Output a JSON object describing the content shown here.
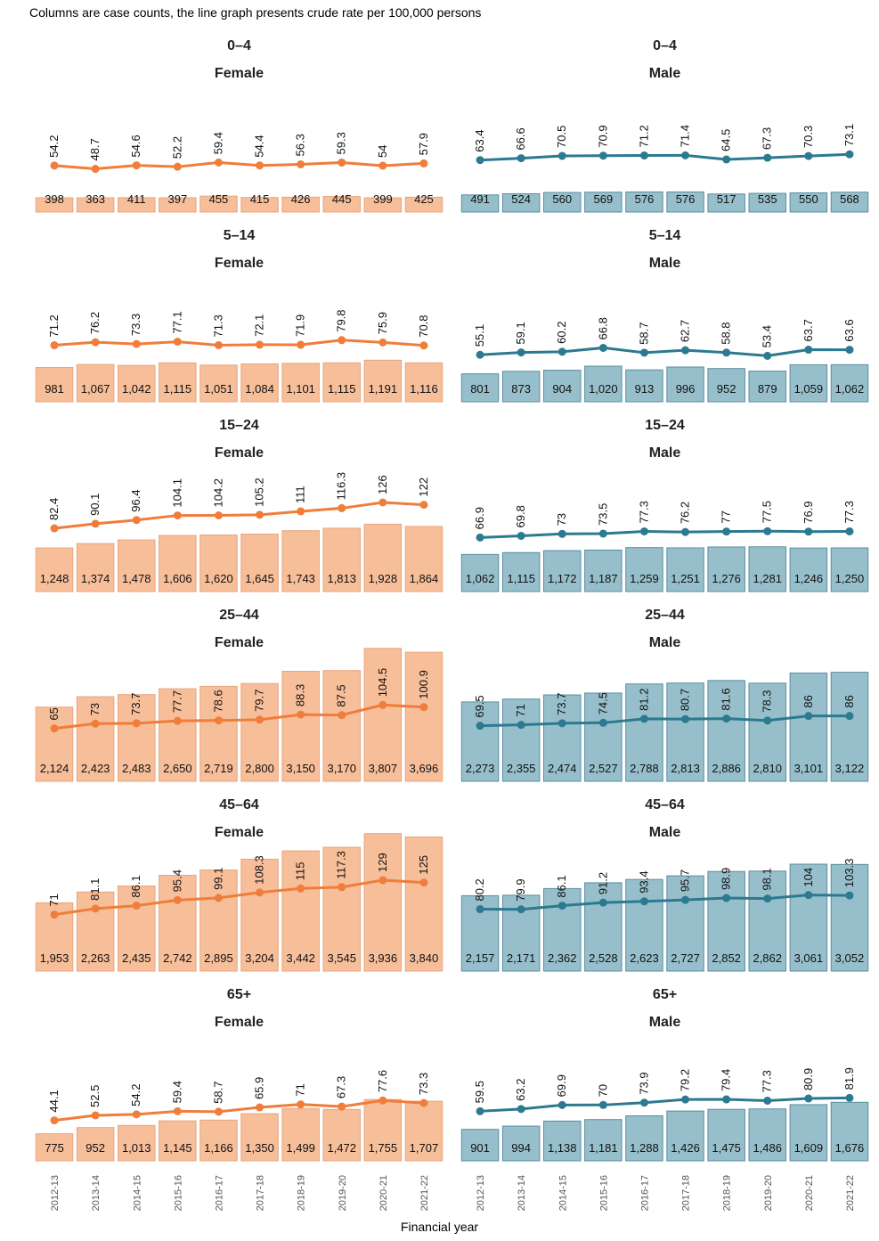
{
  "caption": "Columns are case counts, the line graph presents crude rate per 100,000 persons",
  "xaxis_title": "Financial year",
  "colors": {
    "female_bar": "#f7be9a",
    "female_bar_edge": "#e8a57e",
    "female_line": "#f07d3a",
    "male_bar": "#97bfcb",
    "male_bar_edge": "#5a8ea0",
    "male_line": "#2b7a90"
  },
  "chart_data": {
    "type": "bar+line",
    "categories": [
      "2012-13",
      "2013-14",
      "2014-15",
      "2015-16",
      "2016-17",
      "2017-18",
      "2018-19",
      "2019-20",
      "2020-21",
      "2021-22"
    ],
    "panels": [
      {
        "age": "0–4",
        "sex": "Female",
        "counts": [
          "398",
          "363",
          "411",
          "397",
          "455",
          "415",
          "426",
          "445",
          "399",
          "425"
        ],
        "rates": [
          "54.2",
          "48.7",
          "54.6",
          "52.2",
          "59.4",
          "54.4",
          "56.3",
          "59.3",
          "54",
          "57.9"
        ]
      },
      {
        "age": "0–4",
        "sex": "Male",
        "counts": [
          "491",
          "524",
          "560",
          "569",
          "576",
          "576",
          "517",
          "535",
          "550",
          "568"
        ],
        "rates": [
          "63.4",
          "66.6",
          "70.5",
          "70.9",
          "71.2",
          "71.4",
          "64.5",
          "67.3",
          "70.3",
          "73.1"
        ]
      },
      {
        "age": "5–14",
        "sex": "Female",
        "counts": [
          "981",
          "1,067",
          "1,042",
          "1,115",
          "1,051",
          "1,084",
          "1,101",
          "1,115",
          "1,191",
          "1,116"
        ],
        "rates": [
          "71.2",
          "76.2",
          "73.3",
          "77.1",
          "71.3",
          "72.1",
          "71.9",
          "79.8",
          "75.9",
          "70.8"
        ]
      },
      {
        "age": "5–14",
        "sex": "Male",
        "counts": [
          "801",
          "873",
          "904",
          "1,020",
          "913",
          "996",
          "952",
          "879",
          "1,059",
          "1,062"
        ],
        "rates": [
          "55.1",
          "59.1",
          "60.2",
          "66.8",
          "58.7",
          "62.7",
          "58.8",
          "53.4",
          "63.7",
          "63.6"
        ]
      },
      {
        "age": "15–24",
        "sex": "Female",
        "counts": [
          "1,248",
          "1,374",
          "1,478",
          "1,606",
          "1,620",
          "1,645",
          "1,743",
          "1,813",
          "1,928",
          "1,864"
        ],
        "rates": [
          "82.4",
          "90.1",
          "96.4",
          "104.1",
          "104.2",
          "105.2",
          "111",
          "116.3",
          "126",
          "122"
        ]
      },
      {
        "age": "15–24",
        "sex": "Male",
        "counts": [
          "1,062",
          "1,115",
          "1,172",
          "1,187",
          "1,259",
          "1,251",
          "1,276",
          "1,281",
          "1,246",
          "1,250"
        ],
        "rates": [
          "66.9",
          "69.8",
          "73",
          "73.5",
          "77.3",
          "76.2",
          "77",
          "77.5",
          "76.9",
          "77.3"
        ]
      },
      {
        "age": "25–44",
        "sex": "Female",
        "counts": [
          "2,124",
          "2,423",
          "2,483",
          "2,650",
          "2,719",
          "2,800",
          "3,150",
          "3,170",
          "3,807",
          "3,696"
        ],
        "rates": [
          "65",
          "73",
          "73.7",
          "77.7",
          "78.6",
          "79.7",
          "88.3",
          "87.5",
          "104.5",
          "100.9"
        ]
      },
      {
        "age": "25–44",
        "sex": "Male",
        "counts": [
          "2,273",
          "2,355",
          "2,474",
          "2,527",
          "2,788",
          "2,813",
          "2,886",
          "2,810",
          "3,101",
          "3,122"
        ],
        "rates": [
          "69.5",
          "71",
          "73.7",
          "74.5",
          "81.2",
          "80.7",
          "81.6",
          "78.3",
          "86",
          "86"
        ]
      },
      {
        "age": "45–64",
        "sex": "Female",
        "counts": [
          "1,953",
          "2,263",
          "2,435",
          "2,742",
          "2,895",
          "3,204",
          "3,442",
          "3,545",
          "3,936",
          "3,840"
        ],
        "rates": [
          "71",
          "81.1",
          "86.1",
          "95.4",
          "99.1",
          "108.3",
          "115",
          "117.3",
          "129",
          "125"
        ]
      },
      {
        "age": "45–64",
        "sex": "Male",
        "counts": [
          "2,157",
          "2,171",
          "2,362",
          "2,528",
          "2,623",
          "2,727",
          "2,852",
          "2,862",
          "3,061",
          "3,052"
        ],
        "rates": [
          "80.2",
          "79.9",
          "86.1",
          "91.2",
          "93.4",
          "95.7",
          "98.9",
          "98.1",
          "104",
          "103.3"
        ]
      },
      {
        "age": "65+",
        "sex": "Female",
        "counts": [
          "775",
          "952",
          "1,013",
          "1,145",
          "1,166",
          "1,350",
          "1,499",
          "1,472",
          "1,755",
          "1,707"
        ],
        "rates": [
          "44.1",
          "52.5",
          "54.2",
          "59.4",
          "58.7",
          "65.9",
          "71",
          "67.3",
          "77.6",
          "73.3"
        ]
      },
      {
        "age": "65+",
        "sex": "Male",
        "counts": [
          "901",
          "994",
          "1,138",
          "1,181",
          "1,288",
          "1,426",
          "1,475",
          "1,486",
          "1,609",
          "1,676"
        ],
        "rates": [
          "59.5",
          "63.2",
          "69.9",
          "70",
          "73.9",
          "79.2",
          "79.4",
          "77.3",
          "80.9",
          "81.9"
        ]
      }
    ]
  }
}
